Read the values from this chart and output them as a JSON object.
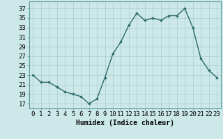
{
  "x": [
    0,
    1,
    2,
    3,
    4,
    5,
    6,
    7,
    8,
    9,
    10,
    11,
    12,
    13,
    14,
    15,
    16,
    17,
    18,
    19,
    20,
    21,
    22,
    23
  ],
  "y": [
    23,
    21.5,
    21.5,
    20.5,
    19.5,
    19,
    18.5,
    17,
    18,
    22.5,
    27.5,
    30,
    33.5,
    36,
    34.5,
    35,
    34.5,
    35.5,
    35.5,
    37,
    33,
    26.5,
    24,
    22.5
  ],
  "line_color": "#2e6b6b",
  "marker": "D",
  "marker_size": 1.8,
  "bg_color": "#cce8e8",
  "grid_color": "#b0d0d0",
  "xlabel": "Humidex (Indice chaleur)",
  "xlabel_fontsize": 7,
  "ylabel_ticks": [
    17,
    19,
    21,
    23,
    25,
    27,
    29,
    31,
    33,
    35,
    37
  ],
  "xtick_labels": [
    "0",
    "1",
    "2",
    "3",
    "4",
    "5",
    "6",
    "7",
    "8",
    "9",
    "10",
    "11",
    "12",
    "13",
    "14",
    "15",
    "16",
    "17",
    "18",
    "19",
    "20",
    "21",
    "22",
    "23"
  ],
  "ylim": [
    16.0,
    38.5
  ],
  "xlim": [
    -0.5,
    23.5
  ],
  "tick_fontsize": 6.5,
  "linewidth": 1.0
}
